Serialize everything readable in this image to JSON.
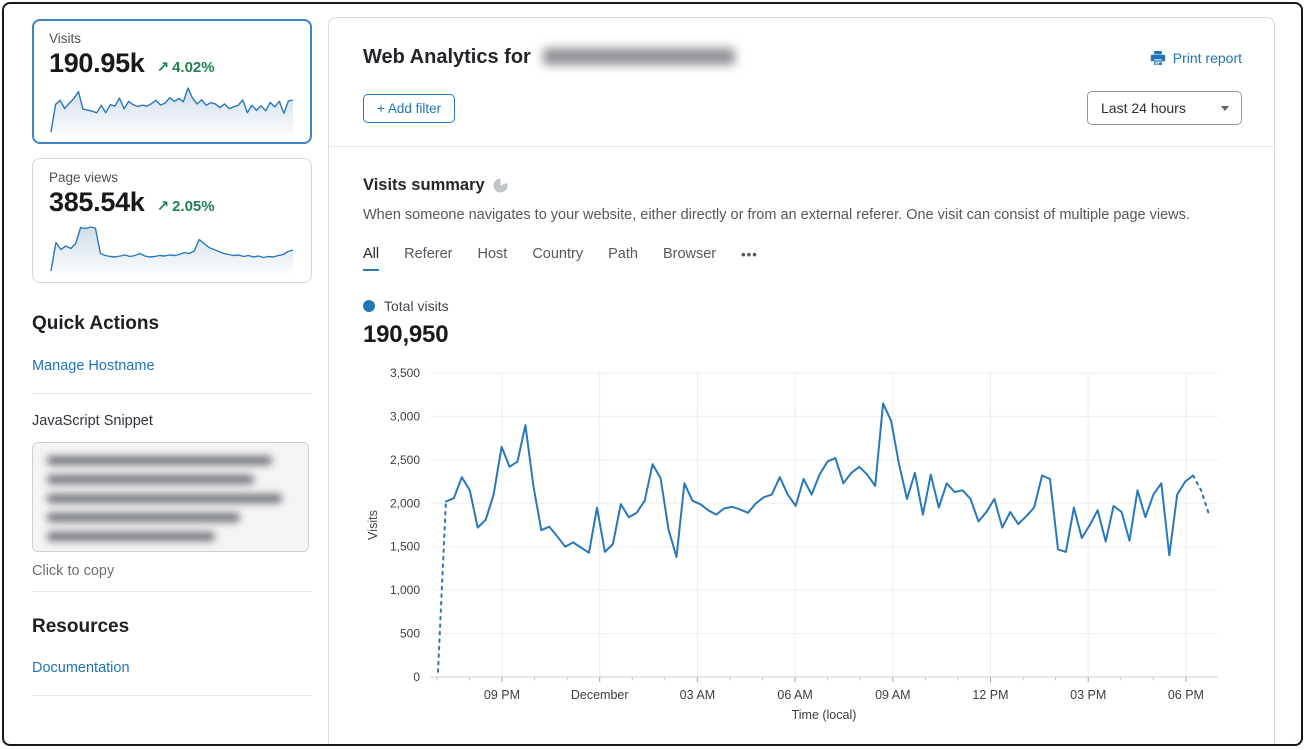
{
  "colors": {
    "accent_blue": "#2878ba",
    "link_blue": "#1f74b5",
    "positive_green": "#1f8150",
    "selected_card_border": "#3e86c7",
    "grid_line": "#ededee",
    "axis_line": "#c9ccd0"
  },
  "icons": {
    "trend_up": "↗"
  },
  "sidebar": {
    "metric_cards": [
      {
        "label": "Visits",
        "value": "190.95k",
        "change": "4.02%",
        "trend": "up",
        "selected": true,
        "spark": [
          100,
          2020,
          2300,
          1720,
          2100,
          2420,
          2900,
          1690,
          1620,
          1550,
          1430,
          1950,
          1440,
          1990,
          1890,
          2450,
          1700,
          2230,
          1990,
          1870,
          1960,
          1890,
          2070,
          2300,
          1970,
          2100,
          2480,
          2230,
          2420,
          2200,
          3150,
          2450,
          2050,
          2330,
          1950,
          2130,
          2050,
          1790,
          2050,
          1720,
          1850,
          1950,
          2320,
          1440,
          1950,
          1600,
          1920,
          1570,
          2150,
          1840,
          2230,
          1400,
          2250,
          2320
        ]
      },
      {
        "label": "Page views",
        "value": "385.54k",
        "change": "2.05%",
        "trend": "up",
        "selected": false,
        "spark": [
          5,
          62,
          48,
          55,
          50,
          60,
          92,
          90,
          93,
          91,
          40,
          36,
          34,
          33,
          35,
          37,
          34,
          36,
          40,
          35,
          33,
          34,
          36,
          35,
          37,
          36,
          38,
          42,
          40,
          45,
          68,
          60,
          52,
          48,
          44,
          40,
          38,
          36,
          37,
          34,
          36,
          33,
          35,
          32,
          34,
          33,
          36,
          38,
          44,
          47
        ]
      }
    ],
    "quick_actions": {
      "title": "Quick Actions",
      "manage_hostname_label": "Manage Hostname",
      "snippet_label": "JavaScript Snippet",
      "copy_hint": "Click to copy"
    },
    "resources": {
      "title": "Resources",
      "documentation_label": "Documentation"
    }
  },
  "header": {
    "title_prefix": "Web Analytics for",
    "print_report_label": "Print report",
    "add_filter_label": "+ Add filter",
    "time_range": "Last 24 hours"
  },
  "summary": {
    "title": "Visits summary",
    "description": "When someone navigates to your website, either directly or from an external referer. One visit can consist of multiple page views.",
    "tabs": [
      "All",
      "Referer",
      "Host",
      "Country",
      "Path",
      "Browser"
    ],
    "active_tab": "All",
    "more_tabs_label": "•••",
    "legend_label": "Total visits",
    "total": "190,950"
  },
  "chart_data": {
    "type": "line",
    "title": "Total visits",
    "xlabel": "Time (local)",
    "ylabel": "Visits",
    "ylim": [
      0,
      3500
    ],
    "yticks": [
      0,
      500,
      1000,
      1500,
      2000,
      2500,
      3000,
      3500
    ],
    "xticks": [
      "09 PM",
      "December",
      "03 AM",
      "06 AM",
      "09 AM",
      "12 PM",
      "03 PM",
      "06 PM"
    ],
    "grid": true,
    "legend_position": "top-left",
    "dashed_head_segments": 1,
    "dashed_tail_segments": 2,
    "series": [
      {
        "name": "Total visits",
        "color": "#2878ba",
        "values": [
          60,
          2020,
          2060,
          2300,
          2150,
          1720,
          1810,
          2100,
          2650,
          2420,
          2480,
          2900,
          2200,
          1690,
          1730,
          1620,
          1500,
          1550,
          1490,
          1430,
          1950,
          1440,
          1530,
          1990,
          1840,
          1890,
          2030,
          2450,
          2290,
          1700,
          1380,
          2230,
          2030,
          1990,
          1920,
          1870,
          1940,
          1960,
          1930,
          1890,
          2000,
          2070,
          2100,
          2300,
          2100,
          1970,
          2280,
          2100,
          2330,
          2480,
          2520,
          2230,
          2350,
          2420,
          2330,
          2200,
          3150,
          2950,
          2450,
          2050,
          2350,
          1870,
          2330,
          1950,
          2230,
          2130,
          2150,
          2050,
          1790,
          1900,
          2050,
          1720,
          1900,
          1760,
          1850,
          1950,
          2320,
          2280,
          1470,
          1440,
          1950,
          1600,
          1750,
          1920,
          1560,
          1970,
          1900,
          1570,
          2150,
          1840,
          2100,
          2230,
          1400,
          2100,
          2250,
          2320,
          2150,
          1870
        ]
      }
    ]
  }
}
